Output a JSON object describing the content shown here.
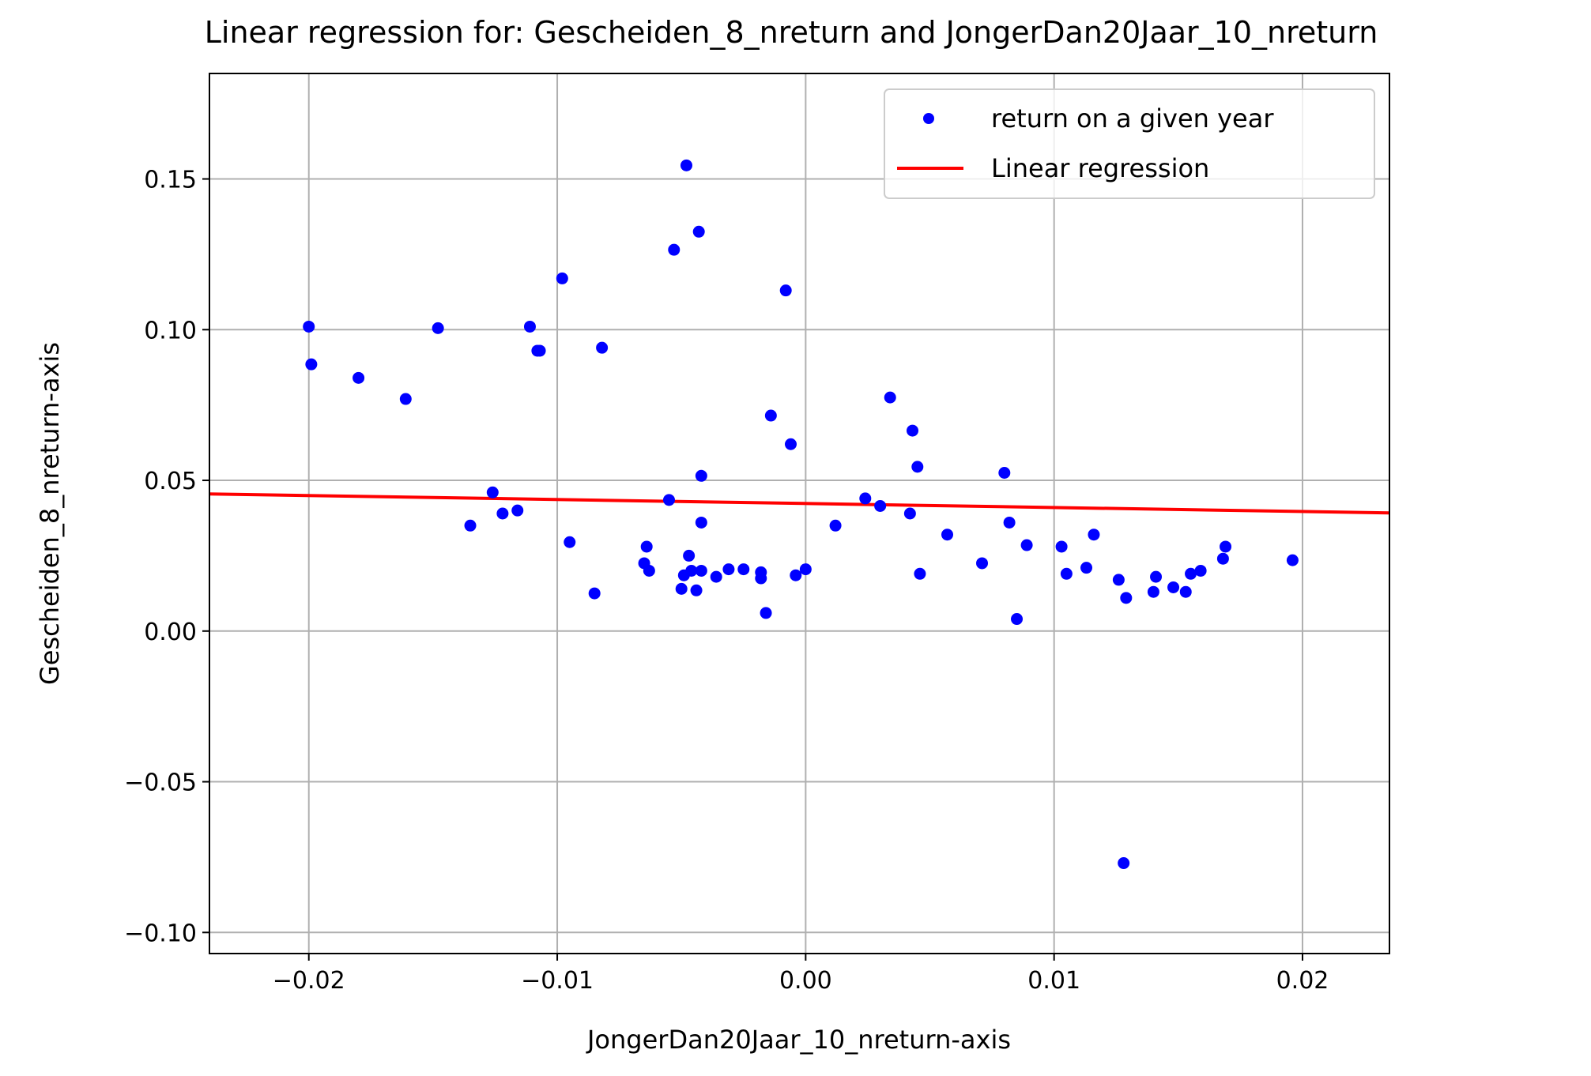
{
  "chart_data": {
    "type": "scatter",
    "title": "Linear regression for: Gescheiden_8_nreturn and JongerDan20Jaar_10_nreturn",
    "xlabel": "JongerDan20Jaar_10_nreturn-axis",
    "ylabel": "Gescheiden_8_nreturn-axis",
    "xlim": [
      -0.024,
      0.0235
    ],
    "ylim": [
      -0.107,
      0.185
    ],
    "xticks": [
      -0.02,
      -0.01,
      0.0,
      0.01,
      0.02
    ],
    "xtick_labels": [
      "−0.02",
      "−0.01",
      "0.00",
      "0.01",
      "0.02"
    ],
    "yticks": [
      -0.1,
      -0.05,
      0.0,
      0.05,
      0.1,
      0.15
    ],
    "ytick_labels": [
      "−0.10",
      "−0.05",
      "0.00",
      "0.05",
      "0.10",
      "0.15"
    ],
    "grid": true,
    "legend_position": "top-right",
    "series": [
      {
        "name": "return on a given year",
        "kind": "scatter",
        "color": "#0000ff",
        "points": [
          [
            -0.02,
            0.101
          ],
          [
            -0.0199,
            0.0885
          ],
          [
            -0.018,
            0.084
          ],
          [
            -0.0161,
            0.077
          ],
          [
            -0.0148,
            0.1005
          ],
          [
            -0.0135,
            0.035
          ],
          [
            -0.0126,
            0.046
          ],
          [
            -0.0122,
            0.039
          ],
          [
            -0.0116,
            0.04
          ],
          [
            -0.0111,
            0.101
          ],
          [
            -0.0108,
            0.093
          ],
          [
            -0.0107,
            0.093
          ],
          [
            -0.0098,
            0.117
          ],
          [
            -0.0095,
            0.0295
          ],
          [
            -0.0085,
            0.0125
          ],
          [
            -0.0082,
            0.094
          ],
          [
            -0.0065,
            0.0225
          ],
          [
            -0.0064,
            0.028
          ],
          [
            -0.0063,
            0.02
          ],
          [
            -0.0055,
            0.0435
          ],
          [
            -0.0053,
            0.1265
          ],
          [
            -0.005,
            0.014
          ],
          [
            -0.0049,
            0.0185
          ],
          [
            -0.0048,
            0.1545
          ],
          [
            -0.0047,
            0.025
          ],
          [
            -0.0046,
            0.02
          ],
          [
            -0.0044,
            0.0135
          ],
          [
            -0.0043,
            0.1325
          ],
          [
            -0.0042,
            0.02
          ],
          [
            -0.0042,
            0.036
          ],
          [
            -0.0042,
            0.0515
          ],
          [
            -0.0036,
            0.018
          ],
          [
            -0.0031,
            0.0205
          ],
          [
            -0.0025,
            0.0205
          ],
          [
            -0.0018,
            0.0195
          ],
          [
            -0.0018,
            0.0175
          ],
          [
            -0.0016,
            0.006
          ],
          [
            -0.0014,
            0.0715
          ],
          [
            -0.0008,
            0.113
          ],
          [
            -0.0006,
            0.062
          ],
          [
            -0.0004,
            0.0185
          ],
          [
            0.0,
            0.0205
          ],
          [
            0.0012,
            0.035
          ],
          [
            0.0024,
            0.044
          ],
          [
            0.003,
            0.0415
          ],
          [
            0.0034,
            0.0775
          ],
          [
            0.0042,
            0.039
          ],
          [
            0.0043,
            0.0665
          ],
          [
            0.0045,
            0.0545
          ],
          [
            0.0046,
            0.019
          ],
          [
            0.0057,
            0.032
          ],
          [
            0.0071,
            0.0225
          ],
          [
            0.008,
            0.0525
          ],
          [
            0.0082,
            0.036
          ],
          [
            0.0085,
            0.004
          ],
          [
            0.0089,
            0.0285
          ],
          [
            0.0103,
            0.028
          ],
          [
            0.0105,
            0.019
          ],
          [
            0.0113,
            0.021
          ],
          [
            0.0116,
            0.032
          ],
          [
            0.0126,
            0.017
          ],
          [
            0.0128,
            -0.077
          ],
          [
            0.0129,
            0.011
          ],
          [
            0.014,
            0.013
          ],
          [
            0.0141,
            0.018
          ],
          [
            0.0148,
            0.0145
          ],
          [
            0.0153,
            0.013
          ],
          [
            0.0155,
            0.019
          ],
          [
            0.0159,
            0.02
          ],
          [
            0.0168,
            0.024
          ],
          [
            0.0169,
            0.028
          ],
          [
            0.0196,
            0.0235
          ]
        ]
      },
      {
        "name": "Linear regression",
        "kind": "line",
        "color": "#ff0000",
        "x": [
          -0.024,
          0.0235
        ],
        "y": [
          0.0455,
          0.0392
        ]
      }
    ]
  }
}
